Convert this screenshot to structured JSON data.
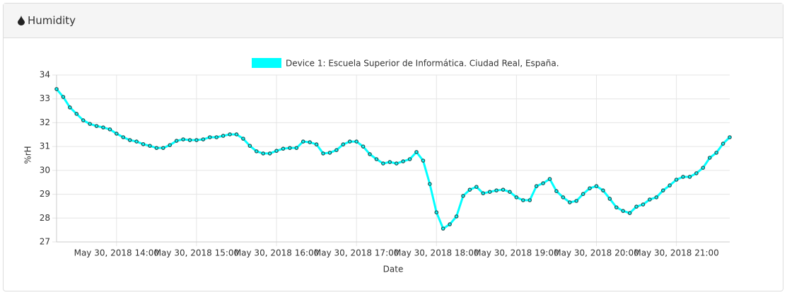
{
  "panel": {
    "title": "Humidity"
  },
  "chart_data": {
    "type": "line",
    "x_label": "Date",
    "y_label": "%rH",
    "x": [
      "2018-05-30T13:15",
      "2018-05-30T13:20",
      "2018-05-30T13:25",
      "2018-05-30T13:30",
      "2018-05-30T13:35",
      "2018-05-30T13:40",
      "2018-05-30T13:45",
      "2018-05-30T13:50",
      "2018-05-30T13:55",
      "2018-05-30T14:00",
      "2018-05-30T14:05",
      "2018-05-30T14:10",
      "2018-05-30T14:15",
      "2018-05-30T14:20",
      "2018-05-30T14:25",
      "2018-05-30T14:30",
      "2018-05-30T14:35",
      "2018-05-30T14:40",
      "2018-05-30T14:45",
      "2018-05-30T14:50",
      "2018-05-30T14:55",
      "2018-05-30T15:00",
      "2018-05-30T15:05",
      "2018-05-30T15:10",
      "2018-05-30T15:15",
      "2018-05-30T15:20",
      "2018-05-30T15:25",
      "2018-05-30T15:30",
      "2018-05-30T15:35",
      "2018-05-30T15:40",
      "2018-05-30T15:45",
      "2018-05-30T15:50",
      "2018-05-30T15:55",
      "2018-05-30T16:00",
      "2018-05-30T16:05",
      "2018-05-30T16:10",
      "2018-05-30T16:15",
      "2018-05-30T16:20",
      "2018-05-30T16:25",
      "2018-05-30T16:30",
      "2018-05-30T16:35",
      "2018-05-30T16:40",
      "2018-05-30T16:45",
      "2018-05-30T16:50",
      "2018-05-30T16:55",
      "2018-05-30T17:00",
      "2018-05-30T17:05",
      "2018-05-30T17:10",
      "2018-05-30T17:15",
      "2018-05-30T17:20",
      "2018-05-30T17:25",
      "2018-05-30T17:30",
      "2018-05-30T17:35",
      "2018-05-30T17:40",
      "2018-05-30T17:45",
      "2018-05-30T17:50",
      "2018-05-30T17:55",
      "2018-05-30T18:00",
      "2018-05-30T18:05",
      "2018-05-30T18:10",
      "2018-05-30T18:15",
      "2018-05-30T18:20",
      "2018-05-30T18:25",
      "2018-05-30T18:30",
      "2018-05-30T18:35",
      "2018-05-30T18:40",
      "2018-05-30T18:45",
      "2018-05-30T18:50",
      "2018-05-30T18:55",
      "2018-05-30T19:00",
      "2018-05-30T19:05",
      "2018-05-30T19:10",
      "2018-05-30T19:15",
      "2018-05-30T19:20",
      "2018-05-30T19:25",
      "2018-05-30T19:30",
      "2018-05-30T19:35",
      "2018-05-30T19:40",
      "2018-05-30T19:45",
      "2018-05-30T19:50",
      "2018-05-30T19:55",
      "2018-05-30T20:00",
      "2018-05-30T20:05",
      "2018-05-30T20:10",
      "2018-05-30T20:15",
      "2018-05-30T20:20",
      "2018-05-30T20:25",
      "2018-05-30T20:30",
      "2018-05-30T20:35",
      "2018-05-30T20:40",
      "2018-05-30T20:45",
      "2018-05-30T20:50",
      "2018-05-30T20:55",
      "2018-05-30T21:00",
      "2018-05-30T21:05",
      "2018-05-30T21:10",
      "2018-05-30T21:15",
      "2018-05-30T21:20",
      "2018-05-30T21:25",
      "2018-05-30T21:30",
      "2018-05-30T21:35",
      "2018-05-30T21:40"
    ],
    "series": [
      {
        "name": "Device 1: Escuela Superior de Informática. Ciudad Real, España.",
        "color": "#00ffff",
        "values": [
          33.41,
          33.08,
          32.64,
          32.37,
          32.1,
          31.95,
          31.86,
          31.8,
          31.72,
          31.54,
          31.39,
          31.27,
          31.21,
          31.1,
          31.03,
          30.94,
          30.94,
          31.06,
          31.24,
          31.3,
          31.27,
          31.27,
          31.3,
          31.39,
          31.39,
          31.45,
          31.51,
          31.51,
          31.33,
          31.03,
          30.8,
          30.71,
          30.71,
          30.82,
          30.91,
          30.94,
          30.94,
          31.21,
          31.18,
          31.09,
          30.71,
          30.74,
          30.85,
          31.09,
          31.21,
          31.21,
          31.0,
          30.68,
          30.47,
          30.29,
          30.35,
          30.29,
          30.38,
          30.47,
          30.77,
          30.41,
          29.43,
          28.24,
          27.56,
          27.74,
          28.07,
          28.93,
          29.19,
          29.31,
          29.04,
          29.1,
          29.16,
          29.19,
          29.1,
          28.87,
          28.75,
          28.75,
          29.34,
          29.46,
          29.64,
          29.13,
          28.87,
          28.66,
          28.72,
          29.01,
          29.25,
          29.34,
          29.16,
          28.81,
          28.45,
          28.3,
          28.21,
          28.48,
          28.57,
          28.78,
          28.87,
          29.16,
          29.37,
          29.61,
          29.73,
          29.73,
          29.88,
          30.11,
          30.53,
          30.74,
          31.12,
          31.39
        ]
      }
    ],
    "xlim": [
      "2018-05-30T13:15",
      "2018-05-30T21:40"
    ],
    "xticks": [
      {
        "value": "2018-05-30T14:00",
        "label": "May 30, 2018 14:00"
      },
      {
        "value": "2018-05-30T15:00",
        "label": "May 30, 2018 15:00"
      },
      {
        "value": "2018-05-30T16:00",
        "label": "May 30, 2018 16:00"
      },
      {
        "value": "2018-05-30T17:00",
        "label": "May 30, 2018 17:00"
      },
      {
        "value": "2018-05-30T18:00",
        "label": "May 30, 2018 18:00"
      },
      {
        "value": "2018-05-30T19:00",
        "label": "May 30, 2018 19:00"
      },
      {
        "value": "2018-05-30T20:00",
        "label": "May 30, 2018 20:00"
      },
      {
        "value": "2018-05-30T21:00",
        "label": "May 30, 2018 21:00"
      }
    ],
    "ylim": [
      27,
      34
    ],
    "yticks": [
      27,
      28,
      29,
      30,
      31,
      32,
      33,
      34
    ],
    "grid": true,
    "legend": "top"
  }
}
